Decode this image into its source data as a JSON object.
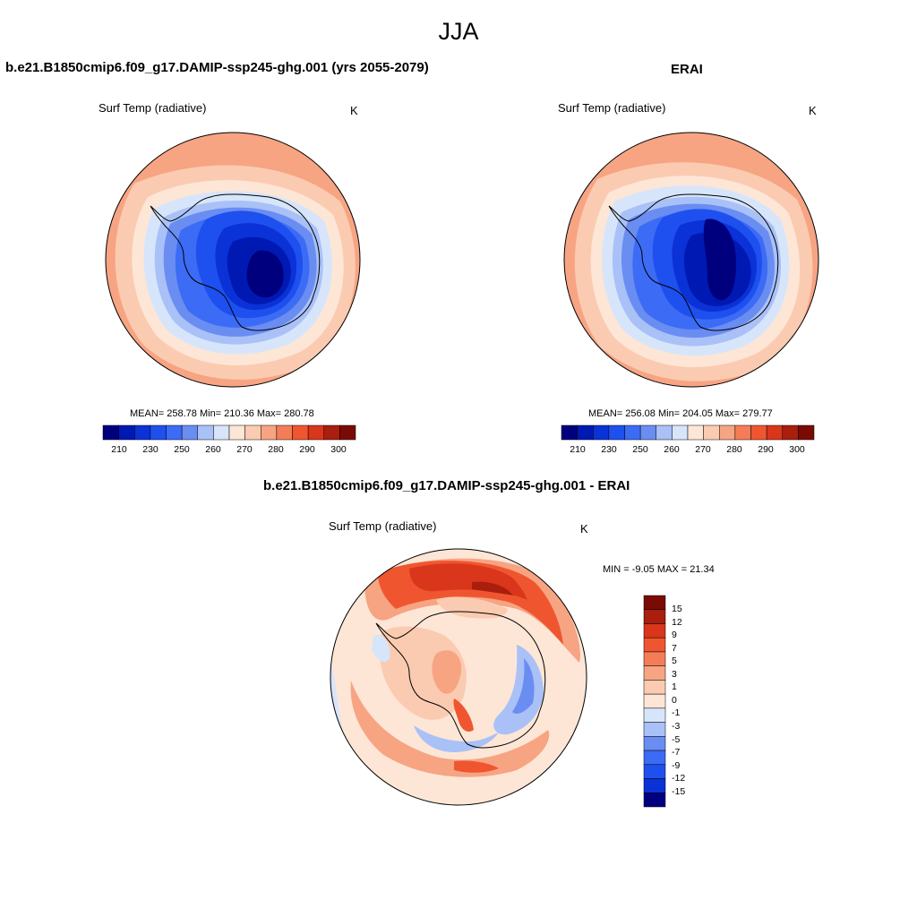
{
  "figure": {
    "season_title": "JJA",
    "model_title": "b.e21.B1850cmip6.f09_g17.DAMIP-ssp245-ghg.001 (yrs 2055-2079)",
    "obs_title": "ERAI",
    "diff_title": "b.e21.B1850cmip6.f09_g17.DAMIP-ssp245-ghg.001 - ERAI"
  },
  "panels": {
    "model": {
      "variable": "Surf Temp (radiative)",
      "units": "K",
      "stats": "MEAN= 258.78  Min= 210.36  Max= 280.78"
    },
    "obs": {
      "variable": "Surf Temp (radiative)",
      "units": "K",
      "stats": "MEAN= 256.08  Min= 204.05  Max= 279.77"
    },
    "diff": {
      "variable": "Surf Temp (radiative)",
      "units": "K",
      "stats": "MIN =  -9.05 MAX =  21.34"
    }
  },
  "colorbars": {
    "absolute": {
      "colors": [
        "#00007f",
        "#0019b2",
        "#0a32d6",
        "#1e50ef",
        "#3c6cf5",
        "#6a8df2",
        "#a9c1f7",
        "#d7e5fb",
        "#fde6d6",
        "#fbcbb1",
        "#f7a483",
        "#f47d57",
        "#ef5630",
        "#d9361c",
        "#a91e0d",
        "#7a0b04"
      ],
      "ticks": [
        "210",
        "230",
        "250",
        "260",
        "270",
        "280",
        "290",
        "300"
      ]
    },
    "difference": {
      "colors": [
        "#7a0b04",
        "#a91e0d",
        "#d9361c",
        "#ef5630",
        "#f47d57",
        "#f7a483",
        "#fbcbb1",
        "#fde6d6",
        "#d7e5fb",
        "#a9c1f7",
        "#6a8df2",
        "#3c6cf5",
        "#1e50ef",
        "#0a32d6",
        "#00007f"
      ],
      "ticks": [
        "15",
        "12",
        "9",
        "7",
        "5",
        "3",
        "1",
        "0",
        "-1",
        "-3",
        "-5",
        "-7",
        "-9",
        "-12",
        "-15"
      ]
    }
  }
}
